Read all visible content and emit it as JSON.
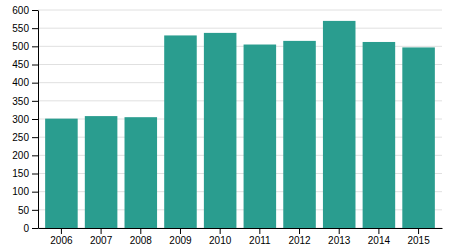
{
  "chart_data": {
    "type": "bar",
    "categories": [
      "2006",
      "2007",
      "2008",
      "2009",
      "2010",
      "2011",
      "2012",
      "2013",
      "2014",
      "2015"
    ],
    "values": [
      301,
      308,
      305,
      530,
      537,
      505,
      515,
      570,
      512,
      497
    ],
    "color": "#2a9d8f",
    "ylim": [
      0,
      600
    ],
    "yticks": [
      0,
      50,
      100,
      150,
      200,
      250,
      300,
      350,
      400,
      450,
      500,
      550,
      600
    ],
    "grid": true
  }
}
